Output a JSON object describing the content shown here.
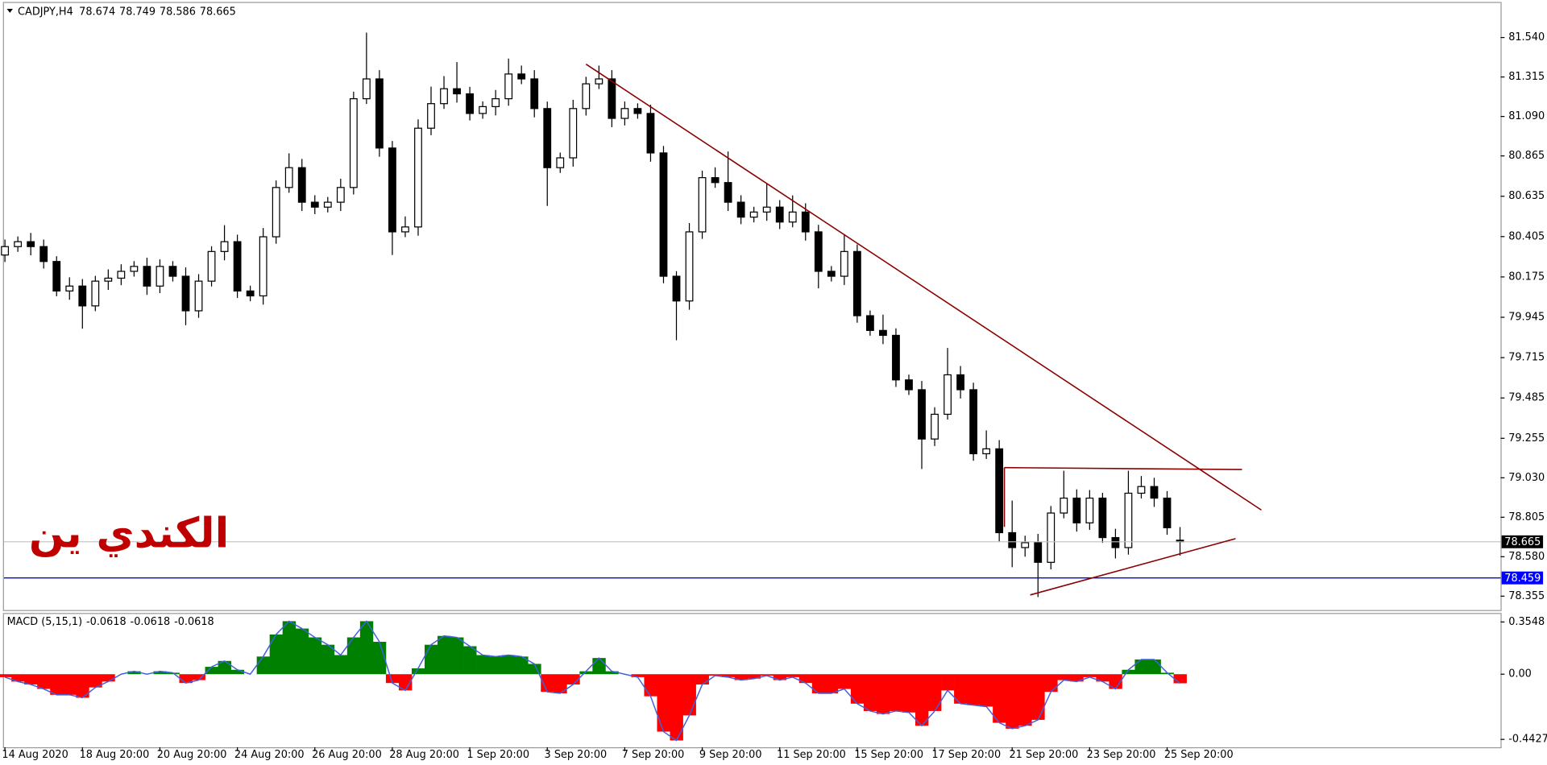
{
  "chart_data": [
    {
      "type": "candlestick",
      "title": "CADJPY,H4",
      "categories": [
        "14 Aug 2020",
        null,
        null,
        null,
        null,
        null,
        "18 Aug 20:00",
        null,
        null,
        null,
        null,
        null,
        "20 Aug 20:00",
        null,
        null,
        null,
        null,
        null,
        "24 Aug 20:00",
        null,
        null,
        null,
        null,
        null,
        "26 Aug 20:00",
        null,
        null,
        null,
        null,
        null,
        "28 Aug 20:00",
        null,
        null,
        null,
        null,
        null,
        "1 Sep 20:00",
        null,
        null,
        null,
        null,
        null,
        "3 Sep 20:00",
        null,
        null,
        null,
        null,
        null,
        "7 Sep 20:00",
        null,
        null,
        null,
        null,
        null,
        "9 Sep 20:00",
        null,
        null,
        null,
        null,
        null,
        "11 Sep 20:00",
        null,
        null,
        null,
        null,
        null,
        "15 Sep 20:00",
        null,
        null,
        null,
        null,
        null,
        "17 Sep 20:00",
        null,
        null,
        null,
        null,
        null,
        "21 Sep 20:00",
        null,
        null,
        null,
        null,
        null,
        "23 Sep 20:00",
        null,
        null,
        null,
        null,
        null,
        "25 Sep 20:00",
        null
      ],
      "open": [
        80.3,
        80.348,
        80.376,
        80.348,
        80.263,
        80.095,
        80.123,
        80.01,
        80.151,
        80.168,
        80.207,
        80.235,
        80.123,
        80.235,
        80.179,
        79.982,
        80.151,
        80.32,
        80.376,
        80.095,
        80.067,
        80.404,
        80.685,
        80.798,
        80.601,
        80.573,
        80.601,
        80.685,
        81.191,
        81.304,
        80.91,
        80.432,
        80.46,
        81.023,
        81.163,
        81.248,
        81.219,
        81.107,
        81.146,
        81.191,
        81.332,
        81.304,
        81.135,
        80.798,
        80.854,
        81.135,
        81.276,
        81.304,
        81.079,
        81.135,
        81.107,
        80.882,
        80.179,
        80.038,
        80.432,
        80.741,
        80.713,
        80.601,
        80.516,
        80.545,
        80.573,
        80.488,
        80.545,
        80.432,
        80.207,
        80.179,
        80.32,
        79.954,
        79.87,
        79.842,
        79.588,
        79.532,
        79.251,
        79.392,
        79.617,
        79.532,
        79.167,
        79.195,
        78.717,
        78.632,
        78.66,
        78.548,
        78.829,
        78.914,
        78.773,
        78.914,
        78.689,
        78.632,
        78.942,
        78.98,
        78.914,
        78.674
      ],
      "high": [
        80.388,
        80.406,
        80.426,
        80.388,
        80.293,
        80.173,
        80.163,
        80.181,
        80.218,
        80.247,
        80.265,
        80.285,
        80.275,
        80.265,
        80.229,
        80.191,
        80.35,
        80.47,
        80.416,
        80.125,
        80.454,
        80.725,
        80.88,
        80.848,
        80.641,
        80.631,
        80.735,
        81.231,
        81.568,
        81.354,
        80.95,
        80.52,
        81.073,
        81.26,
        81.32,
        81.4,
        81.259,
        81.176,
        81.241,
        81.42,
        81.38,
        81.354,
        81.175,
        80.884,
        81.185,
        81.316,
        81.38,
        81.354,
        81.175,
        81.165,
        81.157,
        80.922,
        80.208,
        80.482,
        80.781,
        80.8,
        80.89,
        80.641,
        80.575,
        80.71,
        80.613,
        80.64,
        80.595,
        80.472,
        80.237,
        80.42,
        80.36,
        79.984,
        79.96,
        79.882,
        79.618,
        79.582,
        79.432,
        79.77,
        79.667,
        79.572,
        79.3,
        79.245,
        78.9,
        78.7,
        78.71,
        78.869,
        79.07,
        78.964,
        78.96,
        78.944,
        78.739,
        79.07,
        79.04,
        79.03,
        78.954,
        78.749
      ],
      "low": [
        80.26,
        80.318,
        80.298,
        80.223,
        80.065,
        80.045,
        79.88,
        79.98,
        80.101,
        80.128,
        80.177,
        80.073,
        80.083,
        80.149,
        79.9,
        79.942,
        80.121,
        80.27,
        80.055,
        80.037,
        80.017,
        80.364,
        80.655,
        80.551,
        80.533,
        80.543,
        80.551,
        80.645,
        81.161,
        80.86,
        80.3,
        80.402,
        80.41,
        80.983,
        81.133,
        81.169,
        81.067,
        81.077,
        81.096,
        81.151,
        81.274,
        81.085,
        80.58,
        80.768,
        80.804,
        81.095,
        81.246,
        81.029,
        81.039,
        81.077,
        80.832,
        80.139,
        79.814,
        79.988,
        80.392,
        80.683,
        80.551,
        80.476,
        80.486,
        80.495,
        80.448,
        80.458,
        80.382,
        80.11,
        80.149,
        80.129,
        79.914,
        79.84,
        79.792,
        79.548,
        79.502,
        79.08,
        79.211,
        79.362,
        79.482,
        79.127,
        79.137,
        78.667,
        78.52,
        78.58,
        78.35,
        78.508,
        78.799,
        78.723,
        78.733,
        78.659,
        78.57,
        78.592,
        78.912,
        78.864,
        78.705,
        78.586
      ],
      "close": [
        80.348,
        80.376,
        80.348,
        80.263,
        80.095,
        80.123,
        80.01,
        80.151,
        80.168,
        80.207,
        80.235,
        80.123,
        80.235,
        80.179,
        79.982,
        80.151,
        80.32,
        80.376,
        80.095,
        80.067,
        80.404,
        80.685,
        80.798,
        80.601,
        80.573,
        80.601,
        80.685,
        81.191,
        81.304,
        80.91,
        80.432,
        80.46,
        81.023,
        81.163,
        81.248,
        81.219,
        81.107,
        81.146,
        81.191,
        81.332,
        81.304,
        81.135,
        80.798,
        80.854,
        81.135,
        81.276,
        81.304,
        81.079,
        81.135,
        81.107,
        80.882,
        80.179,
        80.038,
        80.432,
        80.741,
        80.713,
        80.601,
        80.516,
        80.545,
        80.573,
        80.488,
        80.545,
        80.432,
        80.207,
        80.179,
        80.32,
        79.954,
        79.87,
        79.842,
        79.588,
        79.532,
        79.251,
        79.392,
        79.617,
        79.532,
        79.167,
        79.195,
        78.717,
        78.632,
        78.66,
        78.548,
        78.829,
        78.914,
        78.773,
        78.914,
        78.689,
        78.632,
        78.942,
        78.98,
        78.914,
        78.745,
        78.665
      ],
      "up_color": "#ffffff",
      "down_color": "#000000",
      "ylim": [
        78.276,
        81.737
      ],
      "yticks": [
        {
          "value": 81.54,
          "label": "81.540"
        },
        81.315,
        {
          "value": 81.09,
          "label": "81.090"
        },
        80.865,
        80.635,
        80.405,
        80.175,
        79.945,
        79.715,
        79.485,
        79.255,
        {
          "value": 79.03,
          "label": "79.030"
        },
        78.805,
        {
          "value": 78.58,
          "label": "78.580"
        },
        78.355
      ],
      "price_lines": [
        {
          "value": 78.665,
          "color": "#c0c0c0",
          "label_color": "#000000"
        },
        {
          "value": 78.459,
          "color": "#0000ff",
          "label_color": "#0000ff"
        }
      ],
      "trendlines": [
        {
          "color": "#8b0000",
          "x": [
            45,
            97.3
          ],
          "y": [
            81.388,
            78.846
          ]
        },
        {
          "color": "#8b0000",
          "x": [
            77.4,
            95.8
          ],
          "y": [
            79.088,
            79.077
          ]
        },
        {
          "color": "#8b0000",
          "x": [
            77.4,
            77.4
          ],
          "y": [
            79.088,
            78.75
          ]
        },
        {
          "color": "#8b0000",
          "x": [
            79.4,
            95.3
          ],
          "y": [
            78.362,
            78.683
          ]
        }
      ],
      "annotation": "الكندي ين",
      "annotation_color": "#c00000"
    },
    {
      "type": "macd",
      "title": "MACD (5,15,1)",
      "values": [
        -0.02,
        -0.05,
        -0.07,
        -0.1,
        -0.14,
        -0.14,
        -0.16,
        -0.09,
        -0.05,
        0,
        0.02,
        0,
        0.02,
        0.01,
        -0.06,
        -0.04,
        0.05,
        0.09,
        0.03,
        0,
        0.12,
        0.27,
        0.36,
        0.31,
        0.25,
        0.2,
        0.13,
        0.25,
        0.36,
        0.22,
        -0.06,
        -0.11,
        0.04,
        0.2,
        0.26,
        0.25,
        0.19,
        0.13,
        0.12,
        0.13,
        0.12,
        0.07,
        -0.12,
        -0.13,
        -0.07,
        0.02,
        0.11,
        0.02,
        0,
        -0.02,
        -0.15,
        -0.39,
        -0.45,
        -0.28,
        -0.07,
        -0.01,
        -0.02,
        -0.04,
        -0.03,
        -0.01,
        -0.04,
        -0.02,
        -0.06,
        -0.13,
        -0.13,
        -0.1,
        -0.2,
        -0.25,
        -0.27,
        -0.25,
        -0.26,
        -0.35,
        -0.25,
        -0.11,
        -0.2,
        -0.21,
        -0.22,
        -0.33,
        -0.37,
        -0.35,
        -0.31,
        -0.12,
        -0.04,
        -0.05,
        -0.02,
        -0.05,
        -0.1,
        0.03,
        0.1,
        0.1,
        0.01,
        -0.0618
      ],
      "up_color": "#008000",
      "down_color": "#ff0000",
      "line_color": "#4060e0",
      "ylim": [
        -0.496,
        0.409
      ],
      "yticks": [
        0.3548,
        {
          "value": 0,
          "label": "0.00"
        },
        -0.4427
      ]
    }
  ]
}
